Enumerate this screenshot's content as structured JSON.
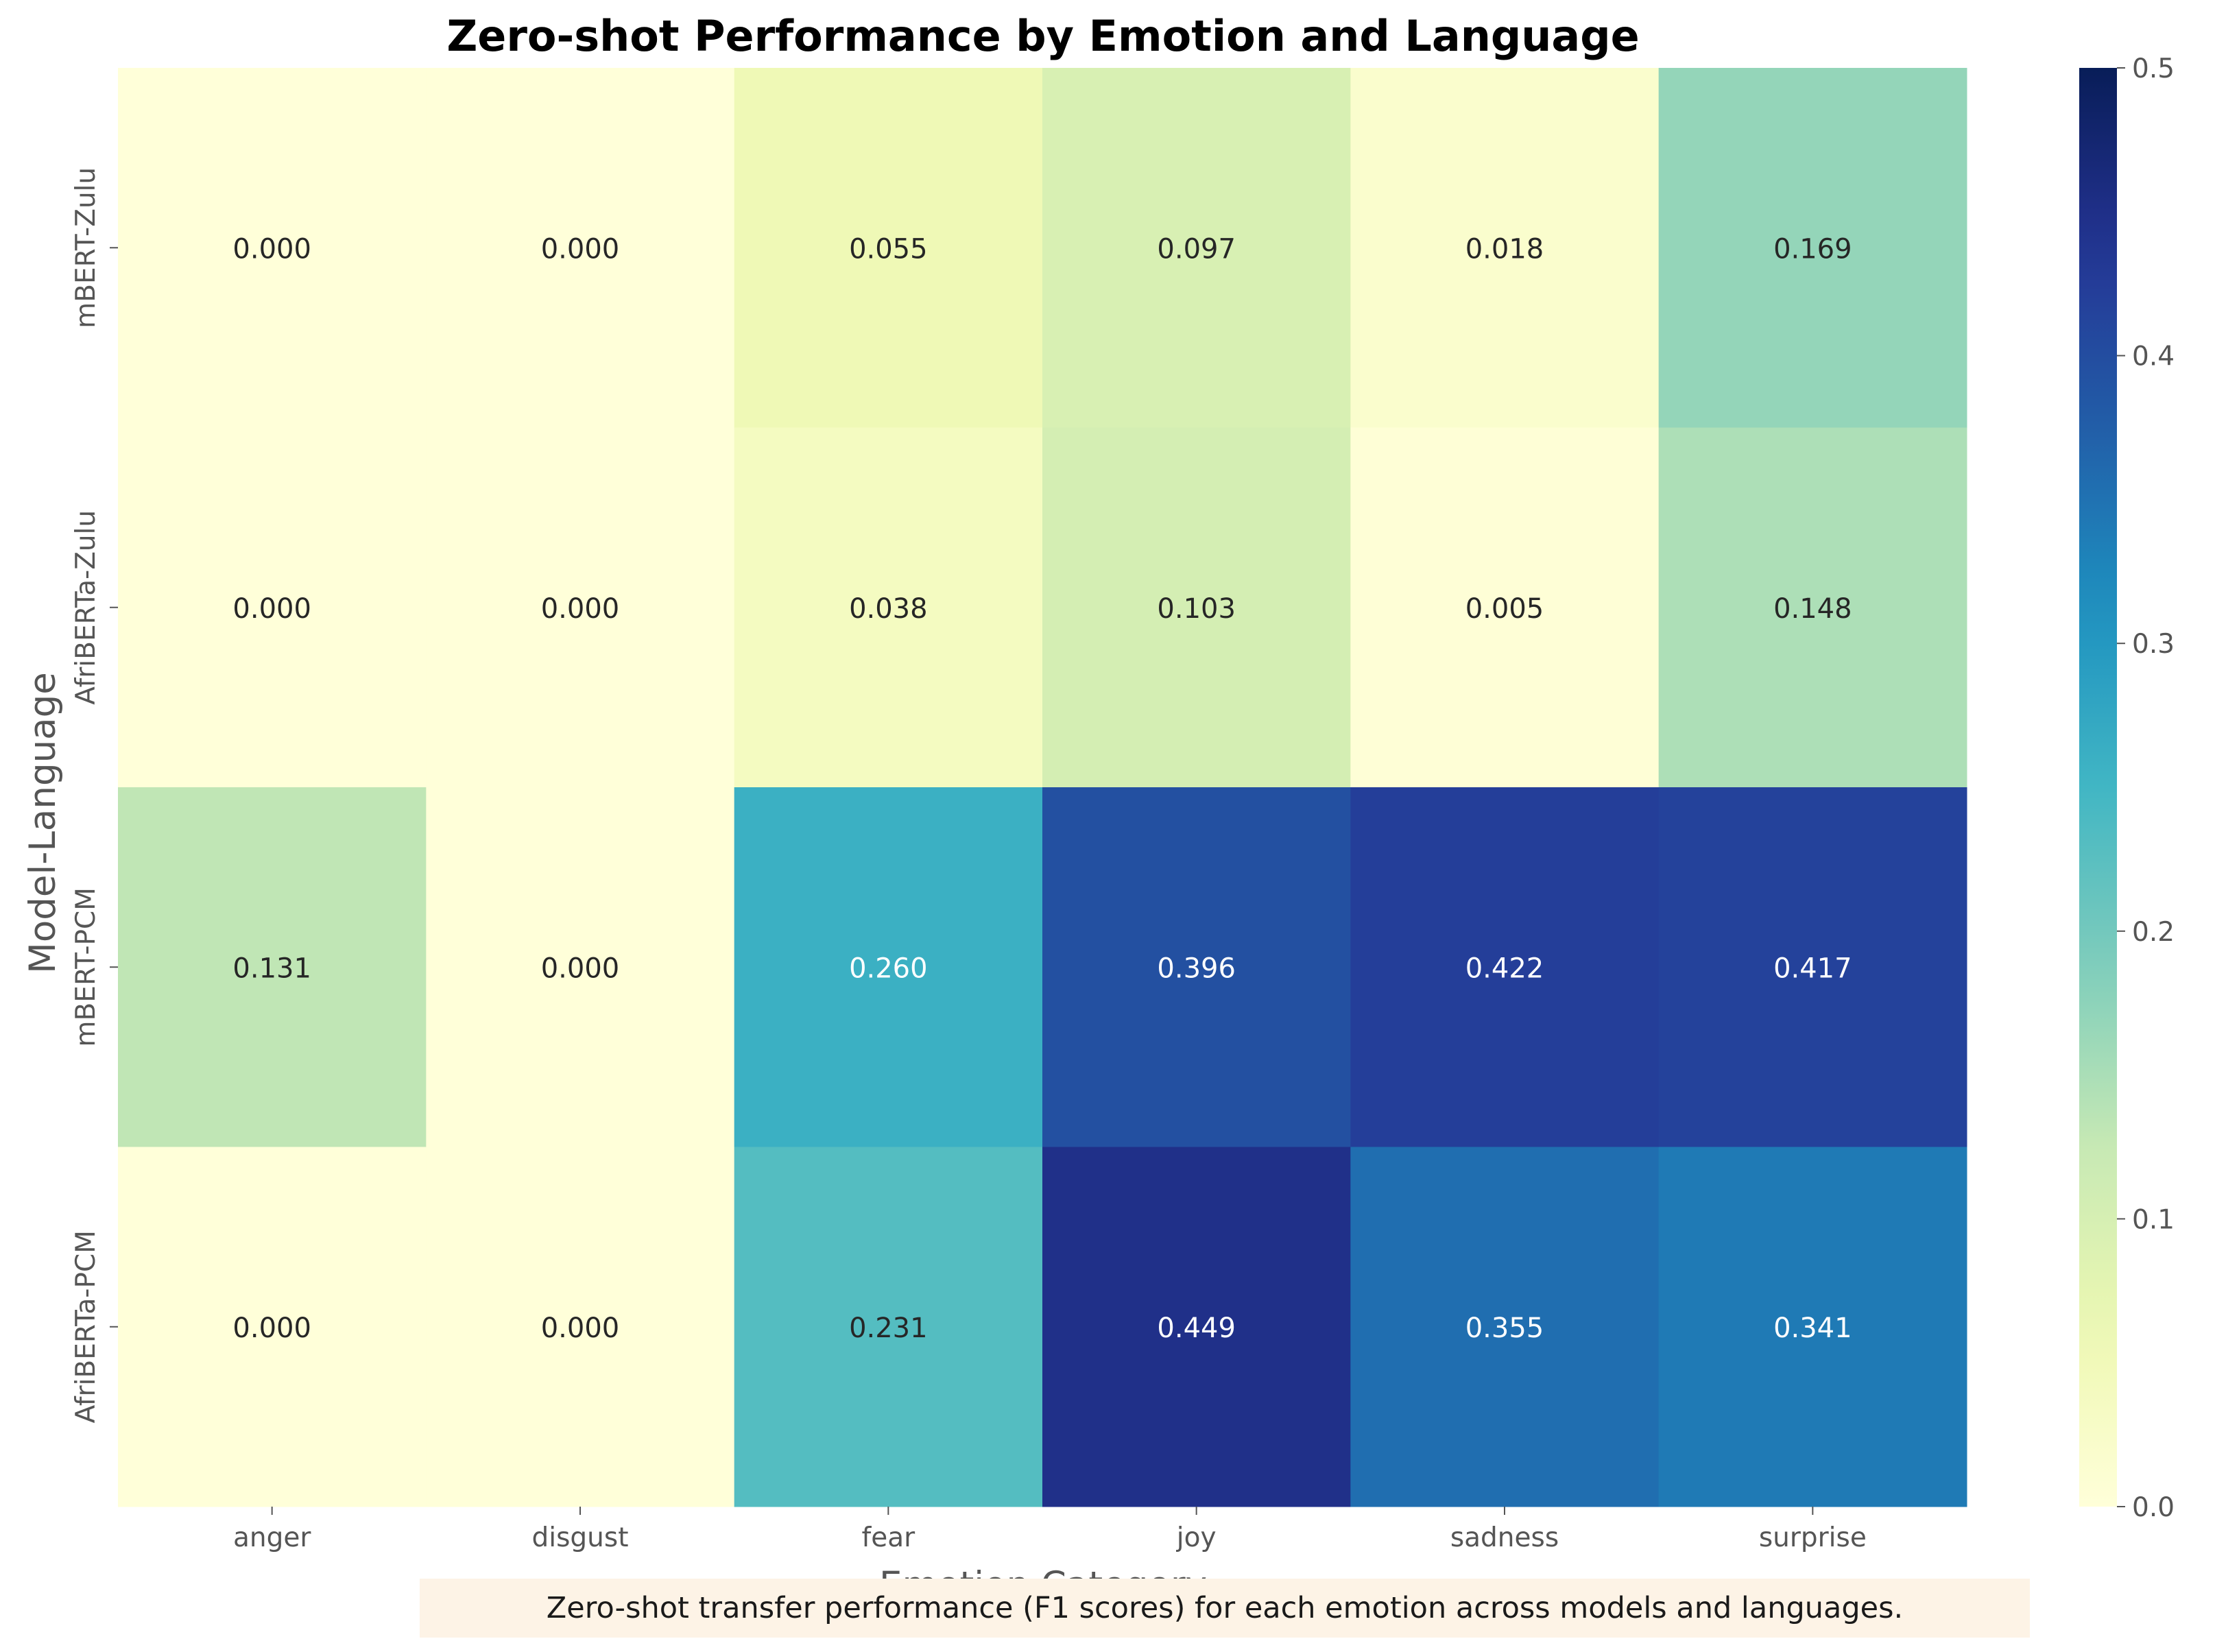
{
  "chart_data": {
    "type": "heatmap",
    "title": "Zero-shot Performance by Emotion and Language",
    "xlabel": "Emotion Category",
    "ylabel": "Model-Language",
    "x_categories": [
      "anger",
      "disgust",
      "fear",
      "joy",
      "sadness",
      "surprise"
    ],
    "y_categories": [
      "mBERT-Zulu",
      "AfriBERTa-Zulu",
      "mBERT-PCM",
      "AfriBERTa-PCM"
    ],
    "values": [
      [
        0.0,
        0.0,
        0.055,
        0.097,
        0.018,
        0.169
      ],
      [
        0.0,
        0.0,
        0.038,
        0.103,
        0.005,
        0.148
      ],
      [
        0.131,
        0.0,
        0.26,
        0.396,
        0.422,
        0.417
      ],
      [
        0.0,
        0.0,
        0.231,
        0.449,
        0.355,
        0.341
      ]
    ],
    "value_format": "0.000",
    "colorscale": "YlGnBu",
    "vmin": 0.0,
    "vmax": 0.5,
    "colorbar_ticks": [
      "0.0",
      "0.1",
      "0.2",
      "0.3",
      "0.4",
      "0.5"
    ],
    "colorbar": true,
    "grid": false,
    "caption": "Zero-shot transfer performance (F1 scores) for each emotion across models and languages."
  }
}
